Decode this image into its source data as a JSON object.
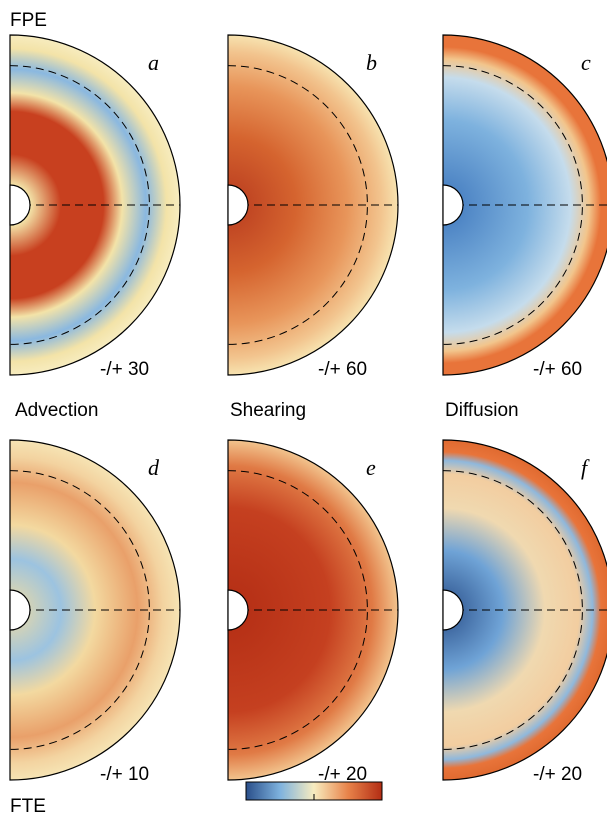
{
  "header": {
    "title": "FPE"
  },
  "panels": [
    {
      "letter": "a",
      "range": "-/+ 30"
    },
    {
      "letter": "b",
      "range": "-/+ 60"
    },
    {
      "letter": "c",
      "range": "-/+ 60"
    },
    {
      "letter": "d",
      "range": "-/+ 10"
    },
    {
      "letter": "e",
      "range": "-/+ 20"
    },
    {
      "letter": "f",
      "range": "-/+ 20"
    }
  ],
  "row_labels": [
    "Advection",
    "Shearing",
    "Diffusion"
  ],
  "footer": {
    "title": "FTE"
  }
}
